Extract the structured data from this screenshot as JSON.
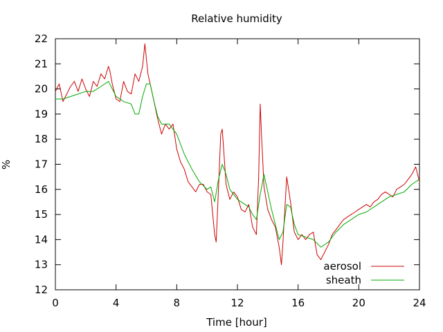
{
  "chart_data": {
    "type": "line",
    "title": "Relative humidity",
    "xlabel": "Time [hour]",
    "ylabel": "%",
    "xlim": [
      0,
      24
    ],
    "ylim": [
      12,
      22
    ],
    "xticks": [
      0,
      4,
      8,
      12,
      16,
      20,
      24
    ],
    "yticks": [
      12,
      13,
      14,
      15,
      16,
      17,
      18,
      19,
      20,
      21,
      22
    ],
    "grid": false,
    "legend_position": "bottom-right",
    "series": [
      {
        "name": "aerosol",
        "color": "#cc0000",
        "x": [
          0,
          0.25,
          0.5,
          0.75,
          1,
          1.25,
          1.5,
          1.75,
          2,
          2.25,
          2.5,
          2.75,
          3,
          3.25,
          3.5,
          3.6,
          3.75,
          4,
          4.25,
          4.5,
          4.75,
          5,
          5.25,
          5.5,
          5.75,
          5.9,
          6,
          6.1,
          6.25,
          6.5,
          6.75,
          7,
          7.25,
          7.5,
          7.75,
          8,
          8.25,
          8.5,
          8.75,
          9,
          9.25,
          9.5,
          9.75,
          10,
          10.25,
          10.5,
          10.6,
          10.75,
          10.9,
          11,
          11.25,
          11.5,
          11.75,
          12,
          12.25,
          12.5,
          12.75,
          13,
          13.25,
          13.4,
          13.5,
          13.6,
          13.75,
          14,
          14.25,
          14.5,
          14.75,
          14.9,
          15,
          15.25,
          15.5,
          15.75,
          16,
          16.25,
          16.5,
          16.75,
          17,
          17.25,
          17.5,
          17.75,
          18,
          18.25,
          18.5,
          18.75,
          19,
          19.25,
          19.5,
          19.75,
          20,
          20.25,
          20.5,
          20.75,
          21,
          21.25,
          21.5,
          21.75,
          22,
          22.25,
          22.5,
          22.75,
          23,
          23.25,
          23.5,
          23.75,
          24
        ],
        "y": [
          19.9,
          20.2,
          19.5,
          19.8,
          20.1,
          20.3,
          19.9,
          20.4,
          20.0,
          19.7,
          20.3,
          20.1,
          20.6,
          20.4,
          20.9,
          20.7,
          20.2,
          19.6,
          19.5,
          20.3,
          19.9,
          19.8,
          20.6,
          20.3,
          20.9,
          21.8,
          21.2,
          20.6,
          20.2,
          19.5,
          18.8,
          18.2,
          18.6,
          18.4,
          18.6,
          17.6,
          17.1,
          16.8,
          16.3,
          16.1,
          15.9,
          16.2,
          16.2,
          15.9,
          15.8,
          14.2,
          13.9,
          16.0,
          18.2,
          18.4,
          16.2,
          15.6,
          15.9,
          15.7,
          15.2,
          15.1,
          15.4,
          14.5,
          14.2,
          16.5,
          19.4,
          18.0,
          16.1,
          15.2,
          14.8,
          14.5,
          13.7,
          13.0,
          13.9,
          16.5,
          15.5,
          14.3,
          14.0,
          14.2,
          14.0,
          14.2,
          14.3,
          13.4,
          13.2,
          13.5,
          13.8,
          14.2,
          14.4,
          14.6,
          14.8,
          14.9,
          15.0,
          15.1,
          15.2,
          15.3,
          15.4,
          15.3,
          15.5,
          15.6,
          15.8,
          15.9,
          15.8,
          15.7,
          16.0,
          16.1,
          16.2,
          16.4,
          16.6,
          16.9,
          16.3
        ]
      },
      {
        "name": "sheath",
        "color": "#00aa00",
        "x": [
          0,
          0.5,
          1,
          1.5,
          2,
          2.5,
          3,
          3.5,
          4,
          4.5,
          5,
          5.25,
          5.5,
          5.75,
          6,
          6.25,
          6.5,
          6.75,
          7,
          7.5,
          8,
          8.5,
          9,
          9.5,
          10,
          10.25,
          10.5,
          10.75,
          11,
          11.25,
          11.5,
          11.75,
          12,
          12.25,
          12.5,
          12.75,
          13,
          13.25,
          13.5,
          13.75,
          14,
          14.25,
          14.5,
          14.75,
          15,
          15.25,
          15.5,
          15.75,
          16,
          16.5,
          17,
          17.5,
          18,
          18.5,
          19,
          19.5,
          20,
          20.5,
          21,
          21.5,
          22,
          22.5,
          23,
          23.5,
          24
        ],
        "y": [
          19.6,
          19.6,
          19.7,
          19.8,
          19.9,
          19.9,
          20.1,
          20.3,
          19.7,
          19.5,
          19.4,
          19.0,
          19.0,
          19.7,
          20.2,
          20.2,
          19.5,
          18.9,
          18.6,
          18.6,
          18.2,
          17.4,
          16.8,
          16.3,
          16.0,
          16.1,
          15.5,
          16.4,
          17.0,
          16.6,
          16.0,
          15.8,
          15.6,
          15.5,
          15.4,
          15.3,
          15.0,
          14.8,
          15.8,
          16.6,
          15.9,
          15.2,
          14.6,
          14.0,
          14.3,
          15.4,
          15.3,
          14.6,
          14.2,
          14.1,
          14.0,
          13.7,
          13.9,
          14.3,
          14.6,
          14.8,
          15.0,
          15.1,
          15.3,
          15.5,
          15.7,
          15.8,
          15.9,
          16.2,
          16.4
        ]
      }
    ]
  }
}
